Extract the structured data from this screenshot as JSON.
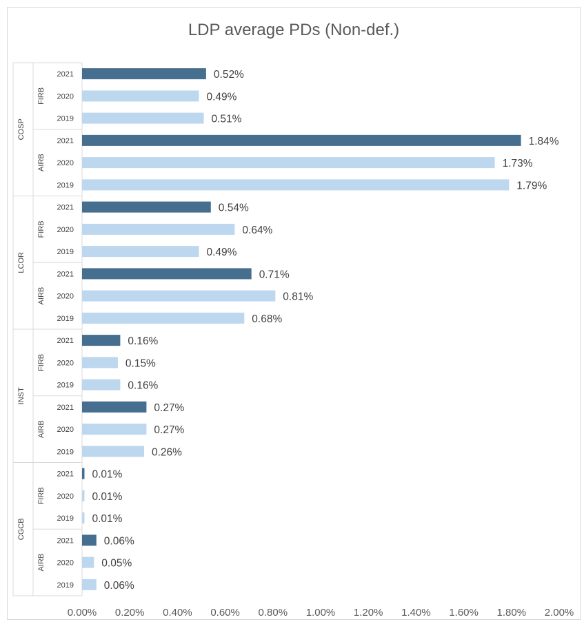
{
  "chart_data": {
    "type": "bar",
    "orientation": "horizontal",
    "title": "LDP average PDs (Non-def.)",
    "xlabel": "",
    "ylabel": "",
    "xlim": [
      0,
      2.0
    ],
    "x_ticks": [
      "0.00%",
      "0.20%",
      "0.40%",
      "0.60%",
      "0.80%",
      "1.00%",
      "1.20%",
      "1.40%",
      "1.60%",
      "1.80%",
      "2.00%"
    ],
    "grid": false,
    "legend": "none",
    "unit": "%",
    "colors": {
      "2021": "#466f8f",
      "2020": "#bdd7ee",
      "2019": "#bdd7ee"
    },
    "groups": [
      {
        "segment": "COSP",
        "approach": "FIRB",
        "bars": [
          {
            "year": "2021",
            "value": 0.52,
            "label": "0.52%"
          },
          {
            "year": "2020",
            "value": 0.49,
            "label": "0.49%"
          },
          {
            "year": "2019",
            "value": 0.51,
            "label": "0.51%"
          }
        ]
      },
      {
        "segment": "COSP",
        "approach": "AIRB",
        "bars": [
          {
            "year": "2021",
            "value": 1.84,
            "label": "1.84%"
          },
          {
            "year": "2020",
            "value": 1.73,
            "label": "1.73%"
          },
          {
            "year": "2019",
            "value": 1.79,
            "label": "1.79%"
          }
        ]
      },
      {
        "segment": "LCOR",
        "approach": "FIRB",
        "bars": [
          {
            "year": "2021",
            "value": 0.54,
            "label": "0.54%"
          },
          {
            "year": "2020",
            "value": 0.64,
            "label": "0.64%"
          },
          {
            "year": "2019",
            "value": 0.49,
            "label": "0.49%"
          }
        ]
      },
      {
        "segment": "LCOR",
        "approach": "AIRB",
        "bars": [
          {
            "year": "2021",
            "value": 0.71,
            "label": "0.71%"
          },
          {
            "year": "2020",
            "value": 0.81,
            "label": "0.81%"
          },
          {
            "year": "2019",
            "value": 0.68,
            "label": "0.68%"
          }
        ]
      },
      {
        "segment": "INST",
        "approach": "FIRB",
        "bars": [
          {
            "year": "2021",
            "value": 0.16,
            "label": "0.16%"
          },
          {
            "year": "2020",
            "value": 0.15,
            "label": "0.15%"
          },
          {
            "year": "2019",
            "value": 0.16,
            "label": "0.16%"
          }
        ]
      },
      {
        "segment": "INST",
        "approach": "AIRB",
        "bars": [
          {
            "year": "2021",
            "value": 0.27,
            "label": "0.27%"
          },
          {
            "year": "2020",
            "value": 0.27,
            "label": "0.27%"
          },
          {
            "year": "2019",
            "value": 0.26,
            "label": "0.26%"
          }
        ]
      },
      {
        "segment": "CGCB",
        "approach": "FIRB",
        "bars": [
          {
            "year": "2021",
            "value": 0.01,
            "label": "0.01%"
          },
          {
            "year": "2020",
            "value": 0.01,
            "label": "0.01%"
          },
          {
            "year": "2019",
            "value": 0.01,
            "label": "0.01%"
          }
        ]
      },
      {
        "segment": "CGCB",
        "approach": "AIRB",
        "bars": [
          {
            "year": "2021",
            "value": 0.06,
            "label": "0.06%"
          },
          {
            "year": "2020",
            "value": 0.05,
            "label": "0.05%"
          },
          {
            "year": "2019",
            "value": 0.06,
            "label": "0.06%"
          }
        ]
      }
    ]
  }
}
